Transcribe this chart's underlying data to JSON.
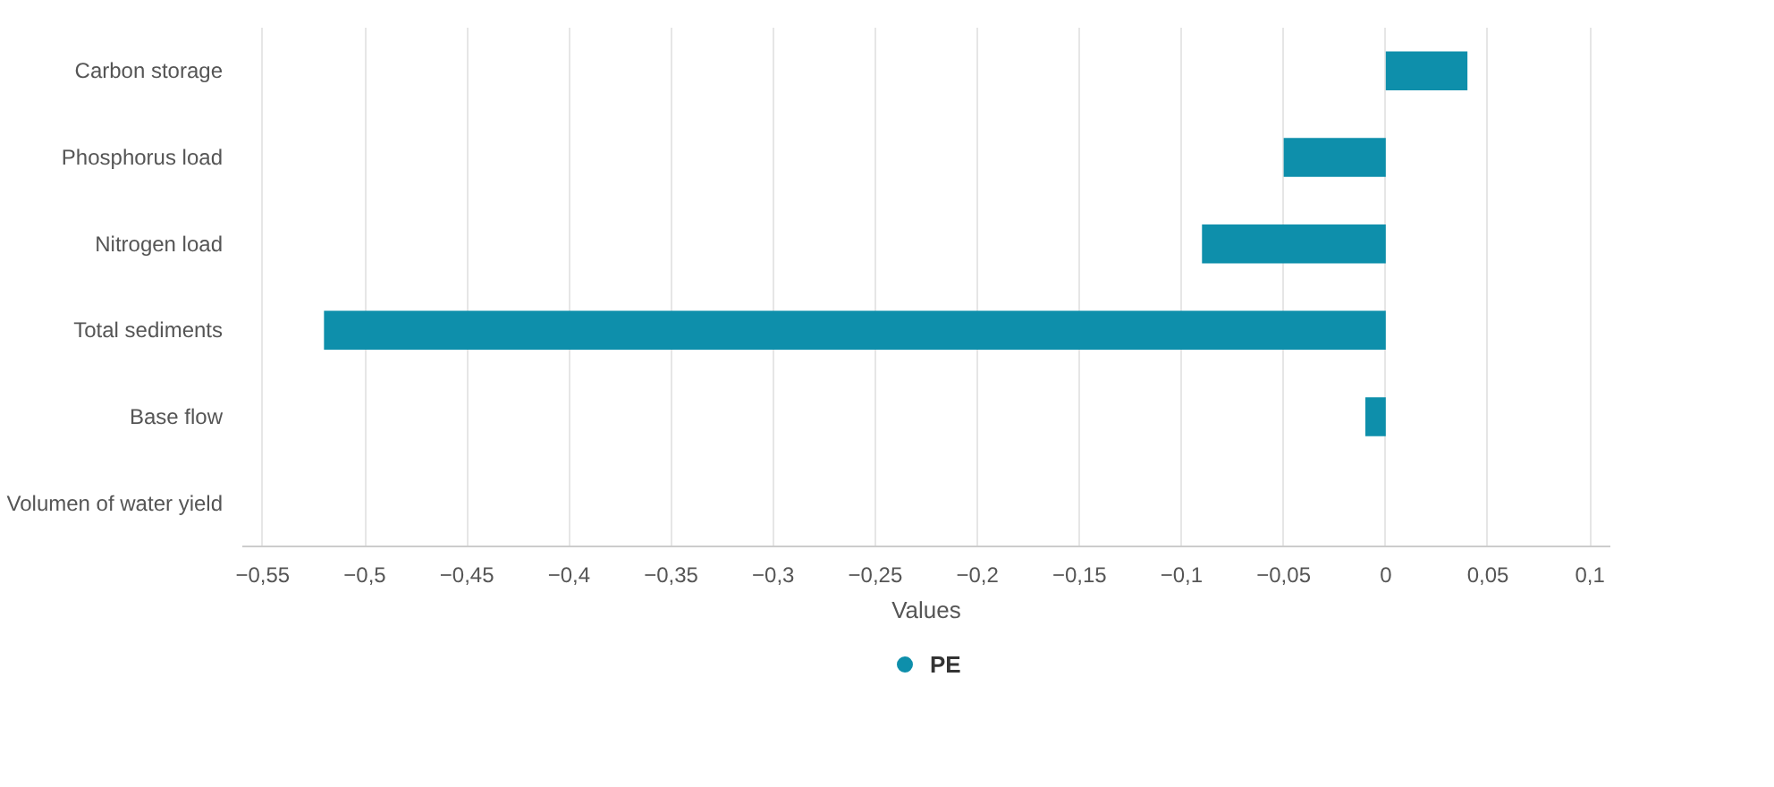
{
  "chart_data": {
    "type": "bar",
    "orientation": "horizontal",
    "xlabel": "Values",
    "categories": [
      "Carbon storage",
      "Phosphorus load",
      "Nitrogen load",
      "Total sediments",
      "Base flow",
      "Volumen of water yield"
    ],
    "series": [
      {
        "name": "PE",
        "color": "#0e8fab",
        "values": [
          0.04,
          -0.05,
          -0.09,
          -0.52,
          -0.01,
          0
        ]
      }
    ],
    "xlim": [
      -0.56,
      0.11
    ],
    "xticks": [
      {
        "value": -0.55,
        "label": "−0,55"
      },
      {
        "value": -0.5,
        "label": "−0,5"
      },
      {
        "value": -0.45,
        "label": "−0,45"
      },
      {
        "value": -0.4,
        "label": "−0,4"
      },
      {
        "value": -0.35,
        "label": "−0,35"
      },
      {
        "value": -0.3,
        "label": "−0,3"
      },
      {
        "value": -0.25,
        "label": "−0,25"
      },
      {
        "value": -0.2,
        "label": "−0,2"
      },
      {
        "value": -0.15,
        "label": "−0,15"
      },
      {
        "value": -0.1,
        "label": "−0,1"
      },
      {
        "value": -0.05,
        "label": "−0,05"
      },
      {
        "value": 0,
        "label": "0"
      },
      {
        "value": 0.05,
        "label": "0,05"
      },
      {
        "value": 0.1,
        "label": "0,1"
      }
    ],
    "grid": "x",
    "legend": "bottom"
  }
}
